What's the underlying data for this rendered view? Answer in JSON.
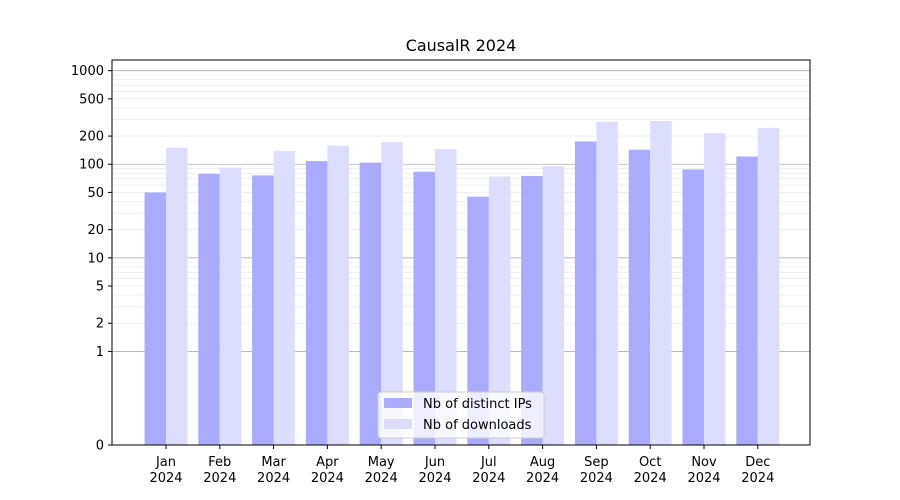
{
  "chart_data": {
    "type": "bar",
    "title": "CausalR 2024",
    "xlabel": "",
    "ylabel": "",
    "yscale": "symlog",
    "grid": true,
    "legend_position": "bottom-center",
    "categories": [
      "Jan\n2024",
      "Feb\n2024",
      "Mar\n2024",
      "Apr\n2024",
      "May\n2024",
      "Jun\n2024",
      "Jul\n2024",
      "Aug\n2024",
      "Sep\n2024",
      "Oct\n2024",
      "Nov\n2024",
      "Dec\n2024"
    ],
    "yticks": [
      0,
      1,
      2,
      5,
      10,
      20,
      50,
      100,
      200,
      500,
      1000
    ],
    "ylim": [
      0,
      1300
    ],
    "series": [
      {
        "name": "Nb of distinct IPs",
        "color": "#aaaaff",
        "values": [
          50,
          79,
          76,
          108,
          104,
          83,
          45,
          75,
          175,
          143,
          88,
          121
        ]
      },
      {
        "name": "Nb of downloads",
        "color": "#ddddff",
        "values": [
          150,
          92,
          138,
          158,
          172,
          145,
          74,
          95,
          285,
          290,
          215,
          245
        ]
      }
    ]
  }
}
